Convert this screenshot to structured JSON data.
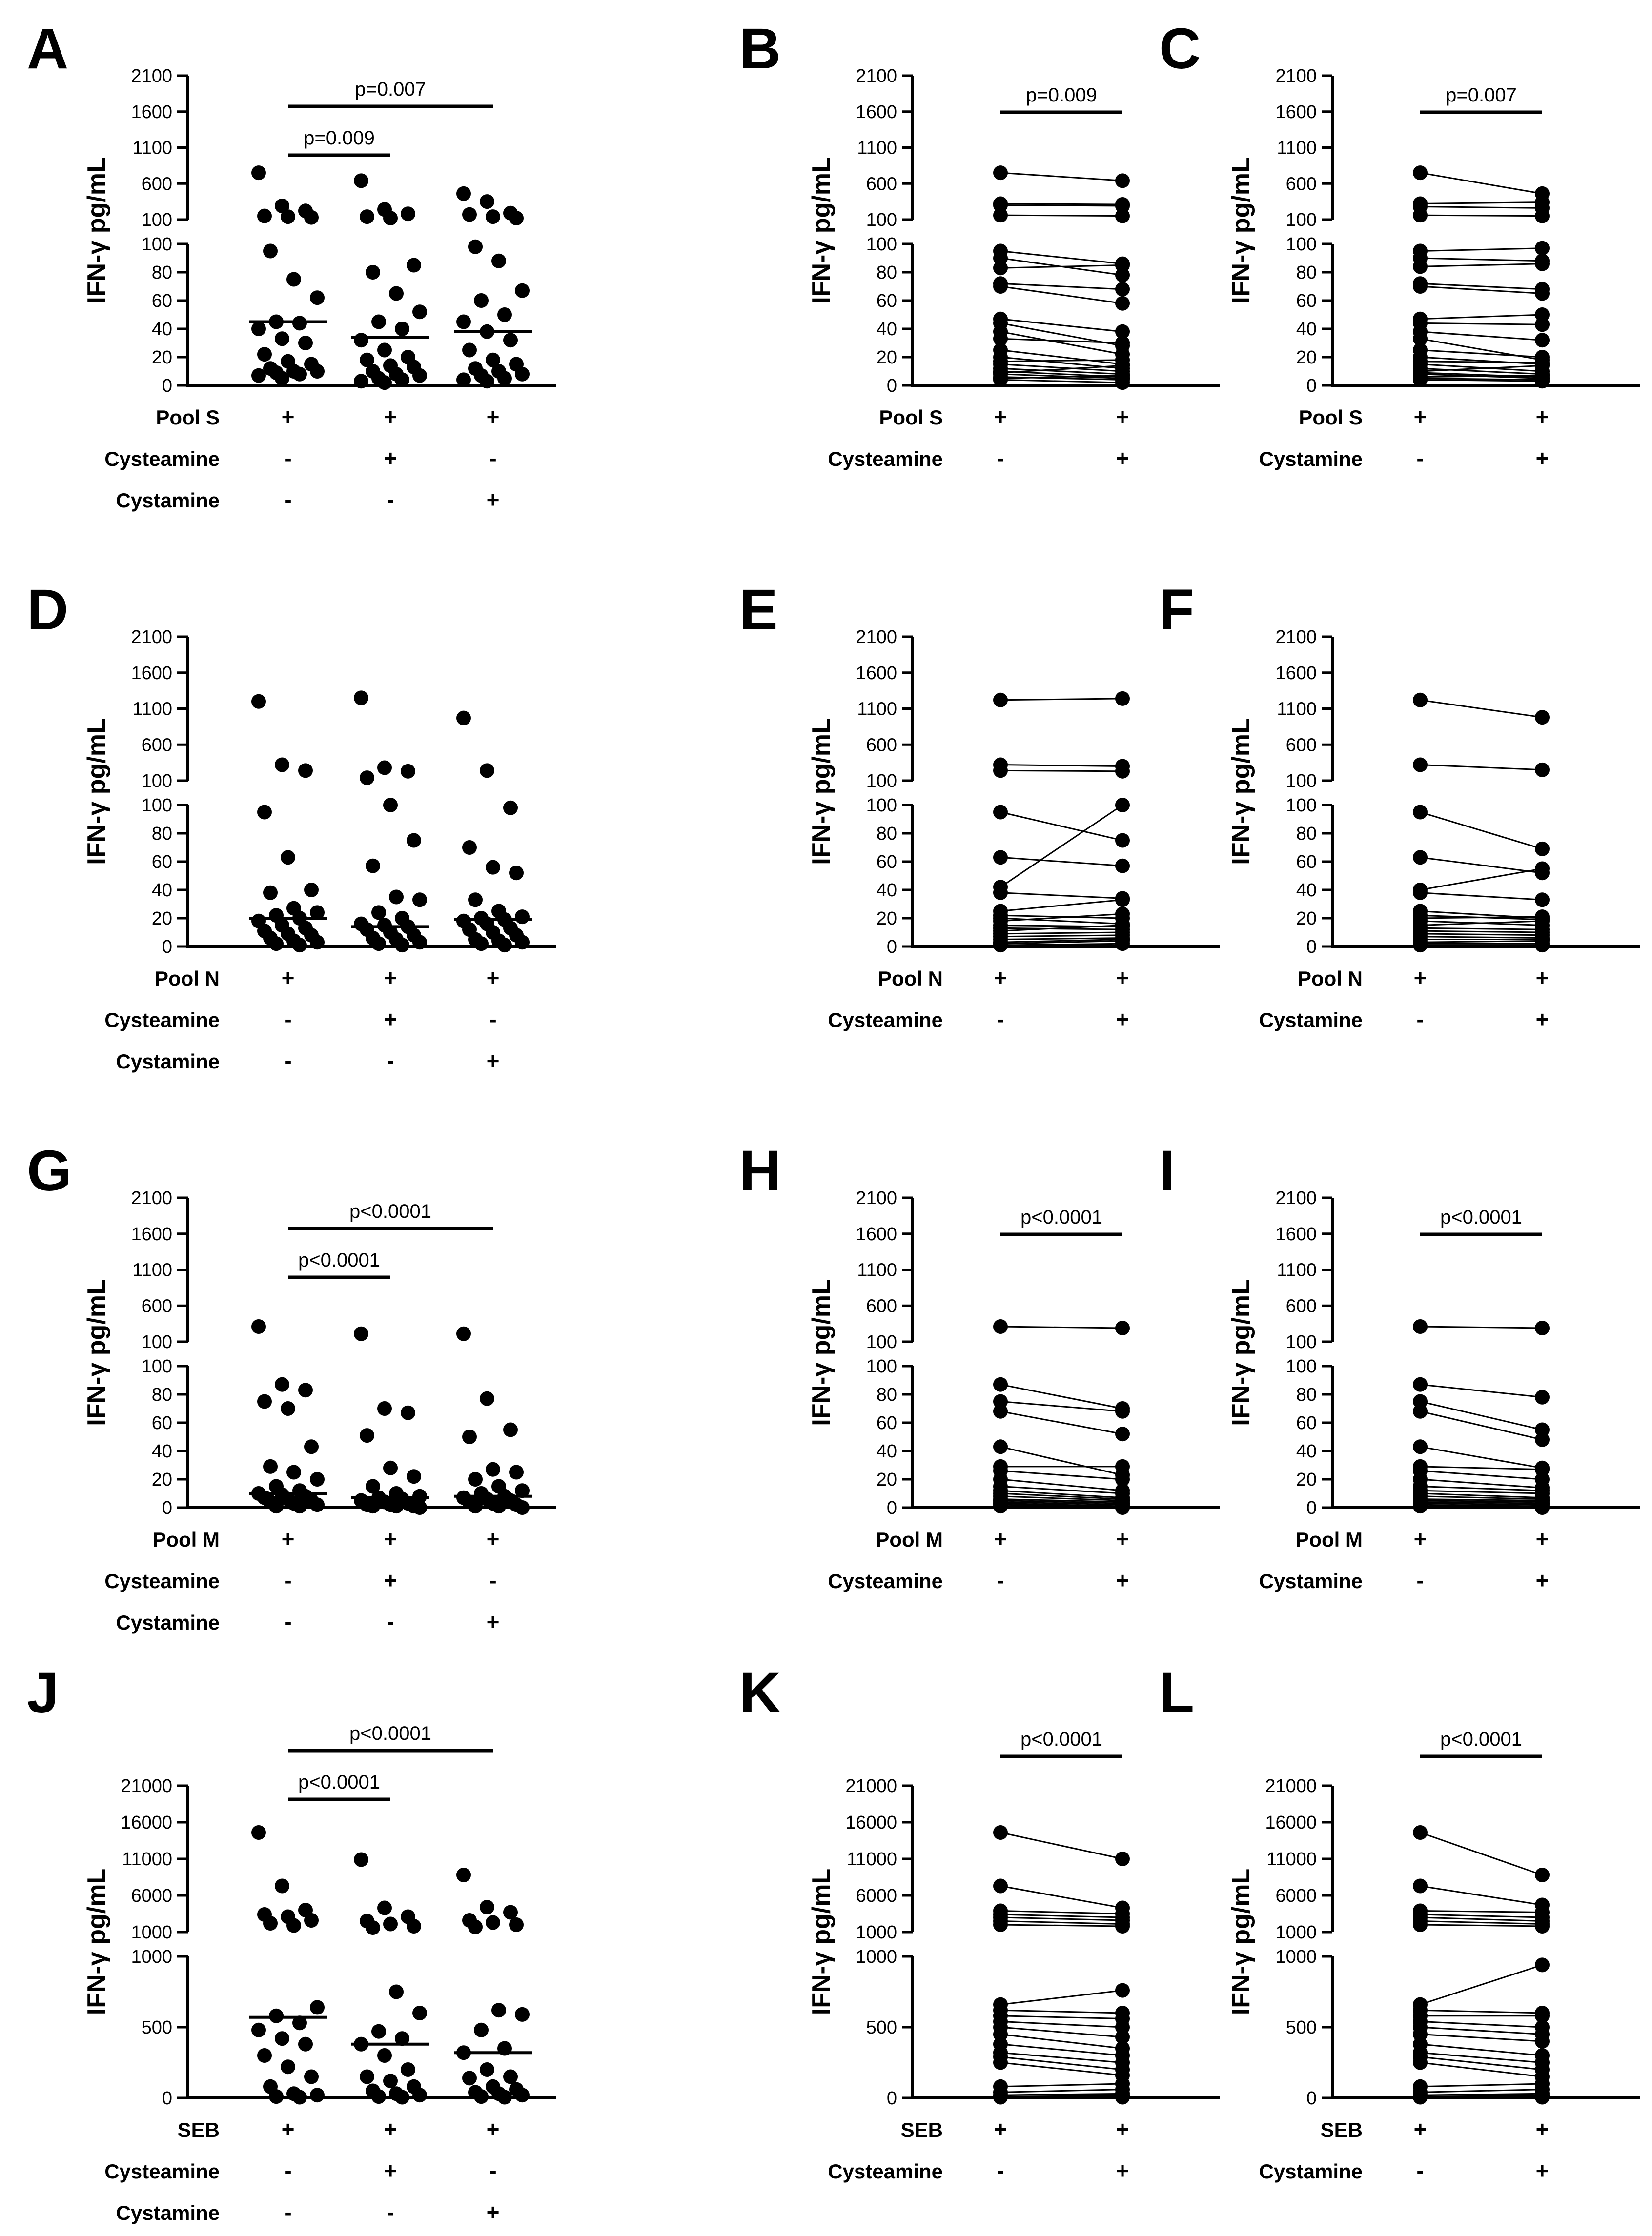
{
  "figure": {
    "ylabel": "IFN-γ pg/mL",
    "y_ticks_low": [
      "0",
      "20",
      "40",
      "60",
      "80",
      "100"
    ],
    "y_ticks_high": [
      "100",
      "600",
      "1100",
      "1600",
      "2100"
    ],
    "y_ticks_low_seb": [
      "0",
      "500",
      "1000"
    ],
    "y_ticks_high_seb": [
      "1000",
      "6000",
      "11000",
      "16000",
      "21000"
    ]
  },
  "chart_data": [
    {
      "panel": "A",
      "type": "scatter",
      "layout": "three",
      "axis": "standard",
      "ylabel": "IFN-γ pg/mL",
      "rows": [
        {
          "label": "Pool S",
          "signs": [
            "+",
            "+",
            "+"
          ]
        },
        {
          "label": "Cysteamine",
          "signs": [
            "-",
            "+",
            "-"
          ]
        },
        {
          "label": "Cystamine",
          "signs": [
            "-",
            "-",
            "+"
          ]
        }
      ],
      "medians": [
        45,
        34,
        38
      ],
      "brackets": [
        {
          "from": 0,
          "to": 1,
          "label": "p=0.009"
        },
        {
          "from": 0,
          "to": 2,
          "label": "p=0.007"
        }
      ],
      "series": [
        [
          750,
          290,
          220,
          150,
          140,
          130,
          95,
          75,
          62,
          45,
          44,
          40,
          33,
          30,
          22,
          17,
          15,
          12,
          10,
          10,
          9,
          8,
          7,
          5
        ],
        [
          640,
          240,
          180,
          140,
          120,
          85,
          80,
          65,
          52,
          45,
          40,
          32,
          25,
          20,
          18,
          14,
          13,
          10,
          8,
          7,
          5,
          4,
          3,
          2
        ],
        [
          460,
          350,
          190,
          170,
          140,
          120,
          98,
          88,
          67,
          60,
          50,
          45,
          38,
          32,
          25,
          18,
          15,
          12,
          10,
          8,
          7,
          5,
          4,
          3
        ]
      ]
    },
    {
      "panel": "B",
      "type": "line",
      "layout": "paired",
      "axis": "standard",
      "ylabel": "IFN-γ pg/mL",
      "rows": [
        {
          "label": "Pool S",
          "signs": [
            "+",
            "+"
          ]
        },
        {
          "label": "Cysteamine",
          "signs": [
            "-",
            "+"
          ]
        }
      ],
      "brackets": [
        {
          "from": 0,
          "to": 1,
          "label": "p=0.009"
        }
      ],
      "series": [
        [
          750,
          320,
          300,
          160,
          95,
          90,
          83,
          72,
          70,
          47,
          44,
          38,
          33,
          25,
          20,
          17,
          15,
          12,
          10,
          9,
          8,
          6,
          5,
          4
        ],
        [
          640,
          310,
          290,
          150,
          86,
          78,
          85,
          68,
          58,
          38,
          28,
          22,
          30,
          15,
          12,
          18,
          10,
          8,
          6,
          14,
          5,
          4,
          7,
          2
        ]
      ]
    },
    {
      "panel": "C",
      "type": "line",
      "layout": "paired",
      "axis": "standard",
      "ylabel": "IFN-γ pg/mL",
      "rows": [
        {
          "label": "Pool S",
          "signs": [
            "+",
            "+"
          ]
        },
        {
          "label": "Cystamine",
          "signs": [
            "-",
            "+"
          ]
        }
      ],
      "brackets": [
        {
          "from": 0,
          "to": 1,
          "label": "p=0.007"
        }
      ],
      "series": [
        [
          750,
          320,
          280,
          160,
          95,
          90,
          84,
          72,
          70,
          47,
          44,
          38,
          33,
          25,
          20,
          17,
          15,
          12,
          10,
          9,
          8,
          6,
          5,
          4
        ],
        [
          460,
          340,
          260,
          150,
          97,
          88,
          86,
          68,
          65,
          50,
          43,
          32,
          18,
          20,
          15,
          16,
          10,
          8,
          14,
          6,
          5,
          7,
          4,
          3
        ]
      ]
    },
    {
      "panel": "D",
      "type": "scatter",
      "layout": "three",
      "axis": "standard",
      "ylabel": "IFN-γ pg/mL",
      "rows": [
        {
          "label": "Pool N",
          "signs": [
            "+",
            "+",
            "+"
          ]
        },
        {
          "label": "Cysteamine",
          "signs": [
            "-",
            "+",
            "-"
          ]
        },
        {
          "label": "Cystamine",
          "signs": [
            "-",
            "-",
            "+"
          ]
        }
      ],
      "medians": [
        20,
        14,
        19
      ],
      "brackets": [],
      "series": [
        [
          1200,
          320,
          240,
          95,
          63,
          40,
          38,
          27,
          24,
          22,
          20,
          18,
          15,
          13,
          11,
          9,
          8,
          6,
          4,
          3,
          2,
          1
        ],
        [
          1250,
          280,
          230,
          140,
          100,
          75,
          57,
          35,
          33,
          24,
          20,
          16,
          15,
          14,
          12,
          10,
          8,
          6,
          5,
          3,
          2,
          1
        ],
        [
          970,
          240,
          98,
          70,
          56,
          52,
          33,
          25,
          21,
          20,
          19,
          18,
          16,
          13,
          12,
          10,
          8,
          5,
          4,
          3,
          2,
          1
        ]
      ]
    },
    {
      "panel": "E",
      "type": "line",
      "layout": "paired",
      "axis": "standard",
      "ylabel": "IFN-γ pg/mL",
      "rows": [
        {
          "label": "Pool N",
          "signs": [
            "+",
            "+"
          ]
        },
        {
          "label": "Cysteamine",
          "signs": [
            "-",
            "+"
          ]
        }
      ],
      "brackets": [],
      "series": [
        [
          1220,
          320,
          240,
          95,
          63,
          42,
          38,
          25,
          22,
          20,
          18,
          15,
          13,
          11,
          9,
          7,
          5,
          3,
          2,
          1
        ],
        [
          1240,
          300,
          230,
          75,
          57,
          100,
          34,
          33,
          20,
          16,
          23,
          14,
          12,
          15,
          10,
          8,
          6,
          5,
          4,
          2
        ]
      ]
    },
    {
      "panel": "F",
      "type": "line",
      "layout": "paired",
      "axis": "standard",
      "ylabel": "IFN-γ pg/mL",
      "rows": [
        {
          "label": "Pool N",
          "signs": [
            "+",
            "+"
          ]
        },
        {
          "label": "Cystamine",
          "signs": [
            "-",
            "+"
          ]
        }
      ],
      "brackets": [],
      "series": [
        [
          1220,
          320,
          95,
          63,
          40,
          38,
          25,
          22,
          20,
          18,
          15,
          13,
          11,
          9,
          7,
          5,
          3,
          2,
          1
        ],
        [
          980,
          250,
          69,
          52,
          55,
          33,
          20,
          19,
          21,
          15,
          18,
          12,
          10,
          8,
          6,
          5,
          4,
          2,
          1
        ]
      ]
    },
    {
      "panel": "G",
      "type": "scatter",
      "layout": "three",
      "axis": "standard",
      "ylabel": "IFN-γ pg/mL",
      "rows": [
        {
          "label": "Pool M",
          "signs": [
            "+",
            "+",
            "+"
          ]
        },
        {
          "label": "Cysteamine",
          "signs": [
            "-",
            "+",
            "-"
          ]
        },
        {
          "label": "Cystamine",
          "signs": [
            "-",
            "-",
            "+"
          ]
        }
      ],
      "medians": [
        10,
        7,
        8
      ],
      "brackets": [
        {
          "from": 0,
          "to": 1,
          "label": "p<0.0001"
        },
        {
          "from": 0,
          "to": 2,
          "label": "p<0.0001"
        }
      ],
      "series": [
        [
          310,
          87,
          83,
          75,
          70,
          43,
          29,
          25,
          20,
          15,
          12,
          10,
          9,
          8,
          7,
          6,
          5,
          4,
          3,
          2,
          1,
          1
        ],
        [
          210,
          70,
          67,
          51,
          28,
          22,
          15,
          10,
          8,
          7,
          6,
          5,
          4,
          3,
          2,
          2,
          1,
          1,
          1,
          0
        ],
        [
          210,
          77,
          55,
          50,
          27,
          25,
          20,
          15,
          12,
          10,
          8,
          7,
          6,
          5,
          4,
          3,
          2,
          1,
          1,
          0
        ]
      ]
    },
    {
      "panel": "H",
      "type": "line",
      "layout": "paired",
      "axis": "standard",
      "ylabel": "IFN-γ pg/mL",
      "rows": [
        {
          "label": "Pool M",
          "signs": [
            "+",
            "+"
          ]
        },
        {
          "label": "Cysteamine",
          "signs": [
            "-",
            "+"
          ]
        }
      ],
      "brackets": [
        {
          "from": 0,
          "to": 1,
          "label": "p<0.0001"
        }
      ],
      "series": [
        [
          310,
          87,
          75,
          68,
          43,
          29,
          26,
          20,
          15,
          12,
          10,
          8,
          6,
          5,
          4,
          3,
          2,
          1
        ],
        [
          290,
          70,
          68,
          52,
          23,
          29,
          20,
          12,
          10,
          7,
          6,
          5,
          4,
          3,
          2,
          1,
          1,
          0
        ]
      ]
    },
    {
      "panel": "I",
      "type": "line",
      "layout": "paired",
      "axis": "standard",
      "ylabel": "IFN-γ pg/mL",
      "rows": [
        {
          "label": "Pool M",
          "signs": [
            "+",
            "+"
          ]
        },
        {
          "label": "Cystamine",
          "signs": [
            "-",
            "+"
          ]
        }
      ],
      "brackets": [
        {
          "from": 0,
          "to": 1,
          "label": "p<0.0001"
        }
      ],
      "series": [
        [
          310,
          87,
          75,
          68,
          43,
          29,
          26,
          20,
          15,
          12,
          10,
          8,
          6,
          5,
          4,
          3,
          2,
          1
        ],
        [
          290,
          78,
          55,
          48,
          28,
          27,
          20,
          14,
          12,
          10,
          7,
          6,
          5,
          4,
          3,
          2,
          1,
          0
        ]
      ]
    },
    {
      "panel": "J",
      "type": "scatter",
      "layout": "three",
      "axis": "seb",
      "ylabel": "IFN-γ pg/mL",
      "rows": [
        {
          "label": "SEB",
          "signs": [
            "+",
            "+",
            "+"
          ]
        },
        {
          "label": "Cysteamine",
          "signs": [
            "-",
            "+",
            "-"
          ]
        },
        {
          "label": "Cystamine",
          "signs": [
            "-",
            "-",
            "+"
          ]
        }
      ],
      "medians": [
        570,
        380,
        320
      ],
      "brackets": [
        {
          "from": 0,
          "to": 1,
          "label": "p<0.0001"
        },
        {
          "from": 0,
          "to": 2,
          "label": "p<0.0001"
        }
      ],
      "series": [
        [
          14600,
          7300,
          4000,
          3400,
          3100,
          2600,
          2200,
          1900,
          640,
          580,
          530,
          480,
          420,
          380,
          300,
          220,
          150,
          80,
          30,
          20,
          10,
          5
        ],
        [
          10900,
          4300,
          3100,
          2500,
          2100,
          1800,
          1600,
          750,
          600,
          470,
          420,
          380,
          300,
          200,
          150,
          120,
          80,
          50,
          30,
          20,
          10,
          5
        ],
        [
          8800,
          4400,
          3700,
          2600,
          2300,
          2000,
          1700,
          620,
          590,
          480,
          350,
          320,
          200,
          150,
          140,
          80,
          60,
          40,
          30,
          20,
          10,
          5
        ]
      ]
    },
    {
      "panel": "K",
      "type": "line",
      "layout": "paired",
      "axis": "seb",
      "ylabel": "IFN-γ pg/mL",
      "rows": [
        {
          "label": "SEB",
          "signs": [
            "+",
            "+"
          ]
        },
        {
          "label": "Cysteamine",
          "signs": [
            "-",
            "+"
          ]
        }
      ],
      "brackets": [
        {
          "from": 0,
          "to": 1,
          "label": "p<0.0001"
        }
      ],
      "series": [
        [
          14600,
          7300,
          3900,
          3400,
          3000,
          2500,
          2000,
          660,
          620,
          580,
          540,
          500,
          450,
          380,
          320,
          290,
          250,
          80,
          40,
          20,
          10,
          5
        ],
        [
          11000,
          4300,
          3500,
          3000,
          2600,
          2100,
          1800,
          760,
          600,
          560,
          500,
          430,
          350,
          300,
          250,
          200,
          160,
          100,
          60,
          30,
          15,
          5
        ]
      ]
    },
    {
      "panel": "L",
      "type": "line",
      "layout": "paired",
      "axis": "seb",
      "ylabel": "IFN-γ pg/mL",
      "rows": [
        {
          "label": "SEB",
          "signs": [
            "+",
            "+"
          ]
        },
        {
          "label": "Cystamine",
          "signs": [
            "-",
            "+"
          ]
        }
      ],
      "brackets": [
        {
          "from": 0,
          "to": 1,
          "label": "p<0.0001"
        }
      ],
      "series": [
        [
          14600,
          7300,
          3900,
          3400,
          3000,
          2500,
          2000,
          660,
          620,
          580,
          540,
          500,
          450,
          380,
          320,
          290,
          250,
          80,
          40,
          20,
          10,
          5
        ],
        [
          8800,
          4700,
          3700,
          3000,
          2500,
          2100,
          1800,
          940,
          600,
          580,
          500,
          450,
          400,
          300,
          250,
          200,
          150,
          100,
          60,
          30,
          15,
          5
        ]
      ]
    }
  ]
}
